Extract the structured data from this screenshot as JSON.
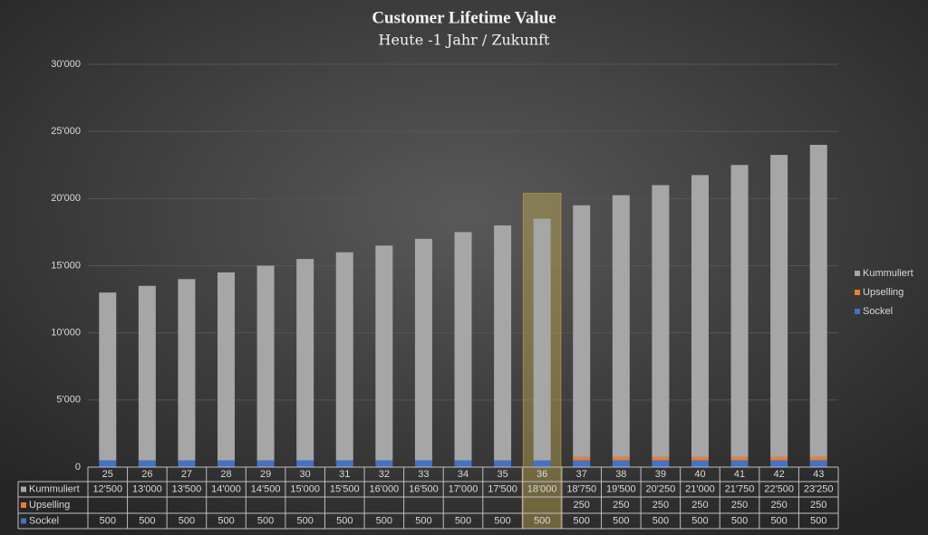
{
  "chart_data": {
    "type": "stacked_bar",
    "title": "Customer Lifetime Value",
    "subtitle": "Heute -1 Jahr / Zukunft",
    "categories": [
      "25",
      "26",
      "27",
      "28",
      "29",
      "30",
      "31",
      "32",
      "33",
      "34",
      "35",
      "36",
      "37",
      "38",
      "39",
      "40",
      "41",
      "42",
      "43"
    ],
    "series": [
      {
        "name": "Kummuliert",
        "color": "#a6a6a6",
        "values": [
          12500,
          13000,
          13500,
          14000,
          14500,
          15000,
          15500,
          16000,
          16500,
          17000,
          17500,
          18000,
          18750,
          19500,
          20250,
          21000,
          21750,
          22500,
          23250
        ],
        "value_labels": [
          "12'500",
          "13'000",
          "13'500",
          "14'000",
          "14'500",
          "15'000",
          "15'500",
          "16'000",
          "16'500",
          "17'000",
          "17'500",
          "18'000",
          "18'750",
          "19'500",
          "20'250",
          "21'000",
          "21'750",
          "22'500",
          "23'250"
        ]
      },
      {
        "name": "Upselling",
        "color": "#ed7d31",
        "values": [
          null,
          null,
          null,
          null,
          null,
          null,
          null,
          null,
          null,
          null,
          null,
          null,
          250,
          250,
          250,
          250,
          250,
          250,
          250
        ]
      },
      {
        "name": "Sockel",
        "color": "#4472c4",
        "values": [
          500,
          500,
          500,
          500,
          500,
          500,
          500,
          500,
          500,
          500,
          500,
          500,
          500,
          500,
          500,
          500,
          500,
          500,
          500
        ]
      }
    ],
    "ylim": [
      0,
      30000
    ],
    "yticks": [
      0,
      {
        "value": 5000,
        "label": "5'000"
      },
      {
        "value": 10000,
        "label": "10'000"
      },
      {
        "value": 15000,
        "label": "15'000"
      },
      {
        "value": 20000,
        "label": "20'000"
      },
      {
        "value": 25000,
        "label": "25'000"
      },
      {
        "value": 30000,
        "label": "30'000"
      }
    ],
    "grid": true,
    "legend": "right",
    "highlight_index": 11
  }
}
